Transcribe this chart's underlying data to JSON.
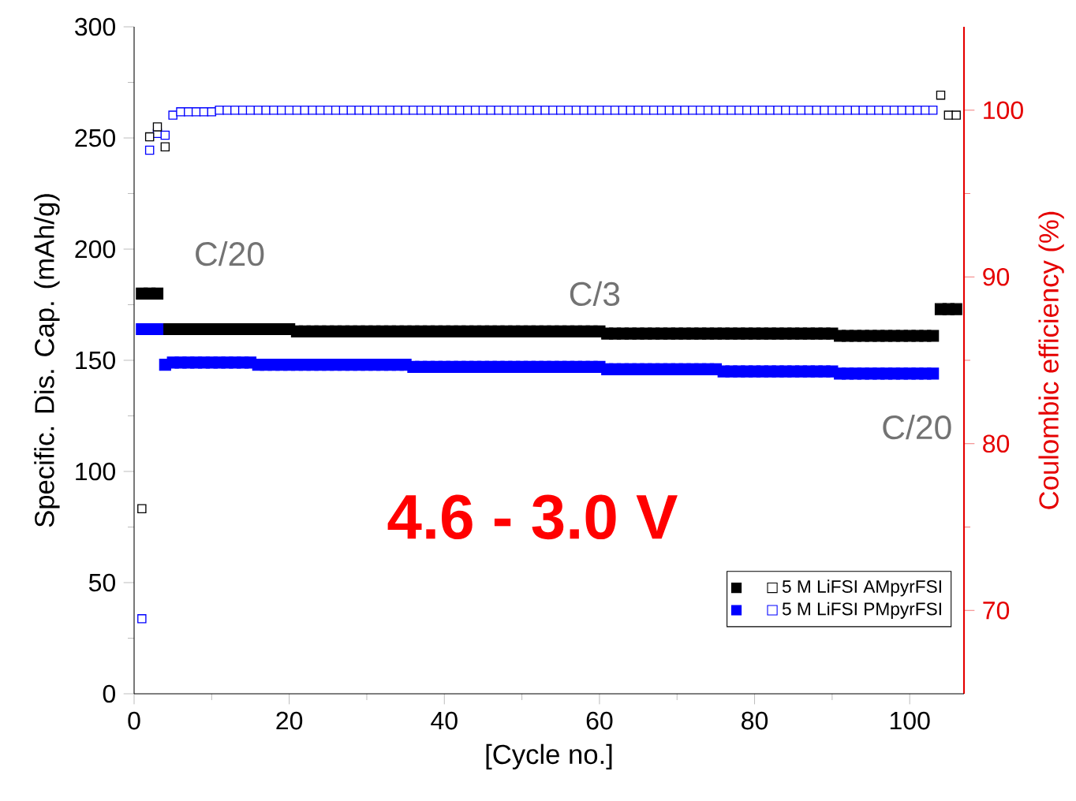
{
  "chart_data": {
    "type": "scatter",
    "xlabel": "[Cycle no.]",
    "ylabel": "Specific. Dis. Cap. (mAh/g)",
    "y2label": "Coulombic efficiency (%)",
    "xlim": [
      0,
      107
    ],
    "xticks": [
      0,
      {
        "value": 10,
        "label": null
      },
      20,
      {
        "value": 30,
        "label": null
      },
      40,
      {
        "value": 50,
        "label": null
      },
      60,
      {
        "value": 70,
        "label": null
      },
      80,
      {
        "value": 90,
        "label": null
      },
      100
    ],
    "ylim": [
      0,
      300
    ],
    "yticks": [
      0,
      {
        "value": 25,
        "label": null
      },
      50,
      {
        "value": 75,
        "label": null
      },
      100,
      {
        "value": 125,
        "label": null
      },
      150,
      {
        "value": 175,
        "label": null
      },
      200,
      {
        "value": 225,
        "label": null
      },
      250,
      {
        "value": 275,
        "label": null
      },
      300
    ],
    "y2lim": [
      65,
      105
    ],
    "y2ticks": [
      70,
      {
        "value": 75,
        "label": null
      },
      80,
      {
        "value": 85,
        "label": null
      },
      90,
      {
        "value": 95,
        "label": null
      },
      100
    ],
    "marker": "square",
    "legend": "bottom right",
    "annotations": [
      "C/20",
      "C/3",
      "C/20",
      "4.6 - 3.0 V"
    ],
    "series": [
      {
        "name": "5 M LiFSI AMpyrFSI",
        "color": "#000000",
        "x": [
          1,
          2,
          3,
          4,
          5,
          6,
          7,
          8,
          9,
          10,
          11,
          12,
          13,
          14,
          15,
          16,
          17,
          18,
          19,
          20,
          21,
          22,
          23,
          24,
          25,
          26,
          27,
          28,
          29,
          30,
          31,
          32,
          33,
          34,
          35,
          36,
          37,
          38,
          39,
          40,
          41,
          42,
          43,
          44,
          45,
          46,
          47,
          48,
          49,
          50,
          51,
          52,
          53,
          54,
          55,
          56,
          57,
          58,
          59,
          60,
          61,
          62,
          63,
          64,
          65,
          66,
          67,
          68,
          69,
          70,
          71,
          72,
          73,
          74,
          75,
          76,
          77,
          78,
          79,
          80,
          81,
          82,
          83,
          84,
          85,
          86,
          87,
          88,
          89,
          90,
          91,
          92,
          93,
          94,
          95,
          96,
          97,
          98,
          99,
          100,
          101,
          102,
          103,
          104,
          105,
          106
        ],
        "values": [
          180,
          180,
          180,
          164,
          164,
          164,
          164,
          164,
          164,
          164,
          164,
          164,
          164,
          164,
          164,
          164,
          164,
          164,
          164,
          164,
          163,
          163,
          163,
          163,
          163,
          163,
          163,
          163,
          163,
          163,
          163,
          163,
          163,
          163,
          163,
          163,
          163,
          163,
          163,
          163,
          163,
          163,
          163,
          163,
          163,
          163,
          163,
          163,
          163,
          163,
          163,
          163,
          163,
          163,
          163,
          163,
          163,
          163,
          163,
          163,
          162,
          162,
          162,
          162,
          162,
          162,
          162,
          162,
          162,
          162,
          162,
          162,
          162,
          162,
          162,
          162,
          162,
          162,
          162,
          162,
          162,
          162,
          162,
          162,
          162,
          162,
          162,
          162,
          162,
          162,
          161,
          161,
          161,
          161,
          161,
          161,
          161,
          161,
          161,
          161,
          161,
          161,
          161,
          173,
          173,
          173
        ]
      },
      {
        "name": "5 M LiFSI PMpyrFSI",
        "color": "#0000ff",
        "x": [
          1,
          2,
          3,
          4,
          5,
          6,
          7,
          8,
          9,
          10,
          11,
          12,
          13,
          14,
          15,
          16,
          17,
          18,
          19,
          20,
          21,
          22,
          23,
          24,
          25,
          26,
          27,
          28,
          29,
          30,
          31,
          32,
          33,
          34,
          35,
          36,
          37,
          38,
          39,
          40,
          41,
          42,
          43,
          44,
          45,
          46,
          47,
          48,
          49,
          50,
          51,
          52,
          53,
          54,
          55,
          56,
          57,
          58,
          59,
          60,
          61,
          62,
          63,
          64,
          65,
          66,
          67,
          68,
          69,
          70,
          71,
          72,
          73,
          74,
          75,
          76,
          77,
          78,
          79,
          80,
          81,
          82,
          83,
          84,
          85,
          86,
          87,
          88,
          89,
          90,
          91,
          92,
          93,
          94,
          95,
          96,
          97,
          98,
          99,
          100,
          101,
          102,
          103
        ],
        "values": [
          164,
          164,
          164,
          148,
          149,
          149,
          149,
          149,
          149,
          149,
          149,
          149,
          149,
          149,
          149,
          148,
          148,
          148,
          148,
          148,
          148,
          148,
          148,
          148,
          148,
          148,
          148,
          148,
          148,
          148,
          148,
          148,
          148,
          148,
          148,
          147,
          147,
          147,
          147,
          147,
          147,
          147,
          147,
          147,
          147,
          147,
          147,
          147,
          147,
          147,
          147,
          147,
          147,
          147,
          147,
          147,
          147,
          147,
          147,
          147,
          146,
          146,
          146,
          146,
          146,
          146,
          146,
          146,
          146,
          146,
          146,
          146,
          146,
          146,
          146,
          145,
          145,
          145,
          145,
          145,
          145,
          145,
          145,
          145,
          145,
          145,
          145,
          145,
          145,
          145,
          144,
          144,
          144,
          144,
          144,
          144,
          144,
          144,
          144,
          144,
          144,
          144,
          144
        ]
      },
      {
        "color": "#0000ff",
        "axis": "y2",
        "x": [
          1,
          2,
          3,
          4,
          5,
          6,
          7,
          8,
          9,
          10,
          11,
          12,
          13,
          14,
          15,
          16,
          17,
          18,
          19,
          20,
          21,
          22,
          23,
          24,
          25,
          26,
          27,
          28,
          29,
          30,
          31,
          32,
          33,
          34,
          35,
          36,
          37,
          38,
          39,
          40,
          41,
          42,
          43,
          44,
          45,
          46,
          47,
          48,
          49,
          50,
          51,
          52,
          53,
          54,
          55,
          56,
          57,
          58,
          59,
          60,
          61,
          62,
          63,
          64,
          65,
          66,
          67,
          68,
          69,
          70,
          71,
          72,
          73,
          74,
          75,
          76,
          77,
          78,
          79,
          80,
          81,
          82,
          83,
          84,
          85,
          86,
          87,
          88,
          89,
          90,
          91,
          92,
          93,
          94,
          95,
          96,
          97,
          98,
          99,
          100,
          101,
          102,
          103
        ],
        "values": [
          69.5,
          97.6,
          98.6,
          98.5,
          99.7,
          99.9,
          99.9,
          99.9,
          99.9,
          99.9,
          100,
          100,
          100,
          100,
          100,
          100,
          100,
          100,
          100,
          100,
          100,
          100,
          100,
          100,
          100,
          100,
          100,
          100,
          100,
          100,
          100,
          100,
          100,
          100,
          100,
          100,
          100,
          100,
          100,
          100,
          100,
          100,
          100,
          100,
          100,
          100,
          100,
          100,
          100,
          100,
          100,
          100,
          100,
          100,
          100,
          100,
          100,
          100,
          100,
          100,
          100,
          100,
          100,
          100,
          100,
          100,
          100,
          100,
          100,
          100,
          100,
          100,
          100,
          100,
          100,
          100,
          100,
          100,
          100,
          100,
          100,
          100,
          100,
          100,
          100,
          100,
          100,
          100,
          100,
          100,
          100,
          100,
          100,
          100,
          100,
          100,
          100,
          100,
          100,
          100,
          100,
          100,
          100
        ]
      },
      {
        "color": "#000000",
        "axis": "y2",
        "x": [
          1,
          2,
          3,
          4,
          104,
          105,
          106
        ],
        "values": [
          76.1,
          98.4,
          99.0,
          97.8,
          100.9,
          99.7,
          99.7
        ]
      }
    ]
  }
}
